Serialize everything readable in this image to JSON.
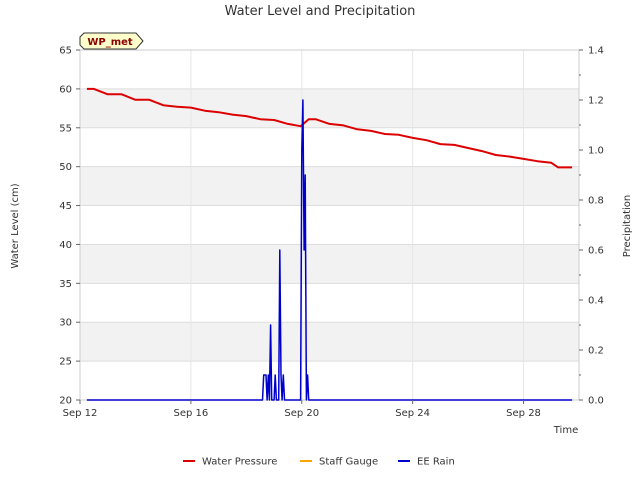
{
  "chart_data": {
    "type": "line",
    "title": "Water Level and Precipitation",
    "site_badge": "WP_met",
    "xlabel": "Time",
    "ylabel_left": "Water Level (cm)",
    "ylabel_right": "Precipitation",
    "x_range": [
      "2023-09-12",
      "2023-09-30"
    ],
    "x_ticks": [
      "Sep 12",
      "Sep 16",
      "Sep 20",
      "Sep 24",
      "Sep 28"
    ],
    "x_tick_dates": [
      "2023-09-12",
      "2023-09-16",
      "2023-09-20",
      "2023-09-24",
      "2023-09-28"
    ],
    "ylim_left": [
      20,
      65
    ],
    "yticks_left": [
      20,
      25,
      30,
      35,
      40,
      45,
      50,
      55,
      60,
      65
    ],
    "ylim_right": [
      0,
      1.4
    ],
    "yticks_right": [
      "0.0",
      "0.2",
      "0.4",
      "0.6",
      "0.8",
      "1.0",
      "1.2",
      "1.4"
    ],
    "grid": true,
    "background_bands": true,
    "legend_position": "bottom",
    "series": [
      {
        "name": "Water Pressure",
        "axis": "left",
        "color": "#dd0000",
        "points": [
          [
            "2023-09-12 06:00",
            60.0
          ],
          [
            "2023-09-12 12:00",
            60.0
          ],
          [
            "2023-09-13 00:00",
            59.3
          ],
          [
            "2023-09-13 12:00",
            59.3
          ],
          [
            "2023-09-14 00:00",
            58.6
          ],
          [
            "2023-09-14 12:00",
            58.6
          ],
          [
            "2023-09-15 00:00",
            57.9
          ],
          [
            "2023-09-15 12:00",
            57.7
          ],
          [
            "2023-09-16 00:00",
            57.6
          ],
          [
            "2023-09-16 12:00",
            57.2
          ],
          [
            "2023-09-17 00:00",
            57.0
          ],
          [
            "2023-09-17 12:00",
            56.7
          ],
          [
            "2023-09-18 00:00",
            56.5
          ],
          [
            "2023-09-18 12:00",
            56.1
          ],
          [
            "2023-09-19 00:00",
            56.0
          ],
          [
            "2023-09-19 12:00",
            55.5
          ],
          [
            "2023-09-19 23:00",
            55.2
          ],
          [
            "2023-09-20 06:00",
            56.1
          ],
          [
            "2023-09-20 12:00",
            56.1
          ],
          [
            "2023-09-21 00:00",
            55.5
          ],
          [
            "2023-09-21 12:00",
            55.3
          ],
          [
            "2023-09-22 00:00",
            54.8
          ],
          [
            "2023-09-22 12:00",
            54.6
          ],
          [
            "2023-09-23 00:00",
            54.2
          ],
          [
            "2023-09-23 12:00",
            54.1
          ],
          [
            "2023-09-24 00:00",
            53.7
          ],
          [
            "2023-09-24 12:00",
            53.4
          ],
          [
            "2023-09-25 00:00",
            52.9
          ],
          [
            "2023-09-25 12:00",
            52.8
          ],
          [
            "2023-09-26 00:00",
            52.4
          ],
          [
            "2023-09-26 12:00",
            52.0
          ],
          [
            "2023-09-27 00:00",
            51.5
          ],
          [
            "2023-09-27 12:00",
            51.3
          ],
          [
            "2023-09-28 00:00",
            51.0
          ],
          [
            "2023-09-28 12:00",
            50.7
          ],
          [
            "2023-09-29 00:00",
            50.5
          ],
          [
            "2023-09-29 06:00",
            49.9
          ],
          [
            "2023-09-29 18:00",
            49.9
          ]
        ]
      },
      {
        "name": "Staff Gauge",
        "axis": "left",
        "color": "#ffa500",
        "points": []
      },
      {
        "name": "EE Rain",
        "axis": "right",
        "color": "#0000cc",
        "points": [
          [
            "2023-09-12 06:00",
            0.0
          ],
          [
            "2023-09-18 14:00",
            0.0
          ],
          [
            "2023-09-18 15:00",
            0.1
          ],
          [
            "2023-09-18 17:00",
            0.1
          ],
          [
            "2023-09-18 18:00",
            0.0
          ],
          [
            "2023-09-18 19:00",
            0.1
          ],
          [
            "2023-09-18 20:00",
            0.0
          ],
          [
            "2023-09-18 21:00",
            0.3
          ],
          [
            "2023-09-18 22:00",
            0.0
          ],
          [
            "2023-09-19 00:00",
            0.0
          ],
          [
            "2023-09-19 01:00",
            0.1
          ],
          [
            "2023-09-19 02:00",
            0.0
          ],
          [
            "2023-09-19 04:00",
            0.0
          ],
          [
            "2023-09-19 05:00",
            0.6
          ],
          [
            "2023-09-19 06:00",
            0.1
          ],
          [
            "2023-09-19 07:00",
            0.0
          ],
          [
            "2023-09-19 08:00",
            0.1
          ],
          [
            "2023-09-19 09:00",
            0.0
          ],
          [
            "2023-09-19 23:00",
            0.0
          ],
          [
            "2023-09-20 00:00",
            1.0
          ],
          [
            "2023-09-20 01:00",
            1.2
          ],
          [
            "2023-09-20 02:00",
            0.6
          ],
          [
            "2023-09-20 03:00",
            0.9
          ],
          [
            "2023-09-20 04:00",
            0.0
          ],
          [
            "2023-09-20 05:00",
            0.1
          ],
          [
            "2023-09-20 06:00",
            0.0
          ],
          [
            "2023-09-29 18:00",
            0.0
          ]
        ]
      }
    ]
  }
}
